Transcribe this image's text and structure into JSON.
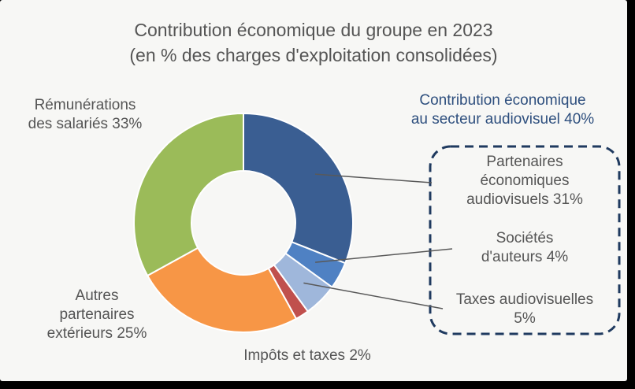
{
  "chart_data": {
    "type": "pie",
    "variant": "donut",
    "title": [
      "Contribution économique du groupe en 2023",
      "(en % des charges d'exploitation consolidées)"
    ],
    "group_label": [
      "Contribution économique",
      "au secteur audiovisuel 40%"
    ],
    "slices": [
      {
        "name": "Partenaires économiques audiovisuels",
        "value": 31,
        "color": "#3a5e92",
        "label": [
          "Partenaires",
          "économiques",
          "audiovisuels 31%"
        ]
      },
      {
        "name": "Sociétés d'auteurs",
        "value": 4,
        "color": "#4f81c3",
        "label": [
          "Sociétés",
          "d'auteurs 4%"
        ]
      },
      {
        "name": "Taxes audiovisuelles",
        "value": 5,
        "color": "#9fb7db",
        "label": [
          "Taxes audiovisuelles",
          "5%"
        ]
      },
      {
        "name": "Impôts et taxes",
        "value": 2,
        "color": "#c0504d",
        "label": [
          "Impôts et taxes 2%"
        ]
      },
      {
        "name": "Autres partenaires extérieurs",
        "value": 25,
        "color": "#f79646",
        "label": [
          "Autres",
          "partenaires",
          "extérieurs 25%"
        ]
      },
      {
        "name": "Rémunérations des salariés",
        "value": 33,
        "color": "#9bbb59",
        "label": [
          "Rémunérations",
          "des salariés 33%"
        ]
      }
    ]
  }
}
